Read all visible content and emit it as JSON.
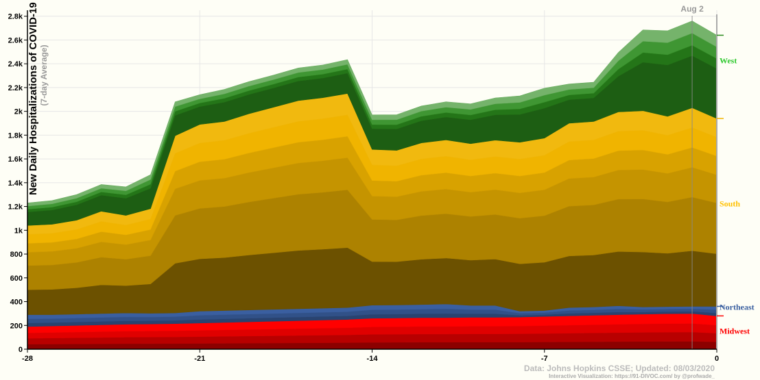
{
  "chart_data": {
    "type": "area",
    "stacked": true,
    "title": "",
    "ylabel": "New Daily Hospitalizations of COVID-19",
    "ylabel_sub": "(7-day Average)",
    "x": [
      -28,
      -27,
      -26,
      -25,
      -24,
      -23,
      -22,
      -21,
      -20,
      -19,
      -18,
      -17,
      -16,
      -15,
      -14,
      -13,
      -12,
      -11,
      -10,
      -9,
      -8,
      -7,
      -6,
      -5,
      -4,
      -3,
      -2,
      -1,
      0
    ],
    "xlim": [
      -28,
      0
    ],
    "ylim": [
      0,
      2850
    ],
    "x_ticks": [
      -28,
      -21,
      -14,
      -7,
      0
    ],
    "x_tick_labels": [
      "-28",
      "-21",
      "-14",
      "-7",
      "0"
    ],
    "y_ticks": [
      0,
      200,
      400,
      600,
      800,
      1000,
      1200,
      1400,
      1600,
      1800,
      2000,
      2200,
      2400,
      2600,
      2800
    ],
    "y_tick_labels": [
      "0",
      "200",
      "400",
      "600",
      "800",
      "1k",
      "1.2k",
      "1.4k",
      "1.6k",
      "1.8k",
      "2k",
      "2.2k",
      "2.4k",
      "2.6k",
      "2.8k"
    ],
    "grid": true,
    "series": [
      {
        "name": "Midwest",
        "color": "#ff0000",
        "values": [
          190,
          195,
          200,
          205,
          210,
          212,
          215,
          220,
          225,
          230,
          235,
          240,
          245,
          250,
          260,
          262,
          265,
          265,
          268,
          268,
          270,
          275,
          280,
          285,
          290,
          295,
          298,
          300,
          280
        ]
      },
      {
        "name": "Northeast",
        "color": "#3a5fa0",
        "values": [
          100,
          95,
          95,
          95,
          95,
          90,
          90,
          100,
          100,
          100,
          100,
          100,
          100,
          100,
          110,
          110,
          110,
          115,
          100,
          100,
          50,
          50,
          70,
          70,
          75,
          60,
          60,
          60,
          80
        ]
      },
      {
        "name": "South",
        "color": "#f0b400",
        "values": [
          750,
          760,
          790,
          860,
          820,
          880,
          1490,
          1570,
          1590,
          1650,
          1700,
          1750,
          1770,
          1800,
          1310,
          1300,
          1360,
          1380,
          1360,
          1390,
          1420,
          1450,
          1550,
          1560,
          1630,
          1650,
          1600,
          1670,
          1580
        ]
      },
      {
        "name": "West",
        "color": "#2a8a1c",
        "values": [
          190,
          200,
          215,
          225,
          240,
          285,
          285,
          250,
          270,
          270,
          270,
          275,
          275,
          285,
          290,
          300,
          310,
          320,
          335,
          355,
          390,
          420,
          330,
          330,
          500,
          680,
          720,
          730,
          700
        ]
      }
    ],
    "region_labels": [
      {
        "name": "West",
        "color": "#2fc92f"
      },
      {
        "name": "South",
        "color": "#ffc000"
      },
      {
        "name": "Northeast",
        "color": "#3a5fa0"
      },
      {
        "name": "Midwest",
        "color": "#ff0000"
      }
    ],
    "hover_date": "Aug 2",
    "hover_x": -1
  },
  "credits": {
    "line1": "Data: Johns Hopkins CSSE; Updated: 08/03/2020",
    "line2": "Interactive Visualization: https://91-DIVOC.com/ by @profwade_"
  }
}
